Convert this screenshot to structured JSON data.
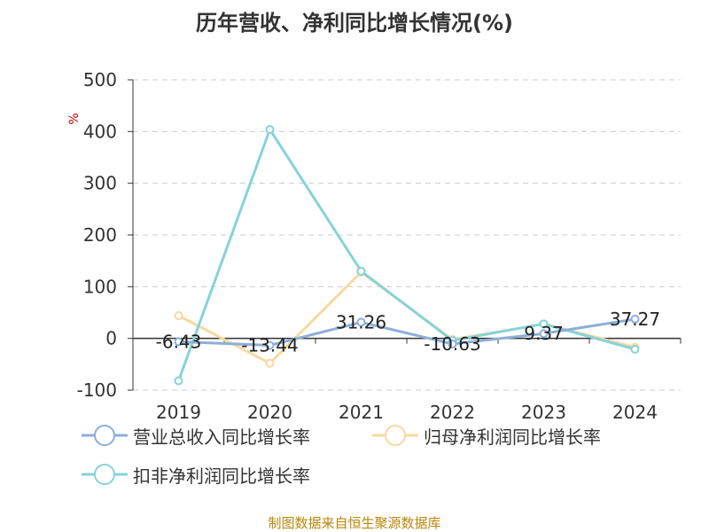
{
  "chart_data": {
    "type": "line",
    "title": "历年营收、净利同比增长情况(%)",
    "ylabel": "%",
    "categories": [
      "2019",
      "2020",
      "2021",
      "2022",
      "2023",
      "2024"
    ],
    "ylim": [
      -100,
      500
    ],
    "yticks": [
      -100,
      0,
      100,
      200,
      300,
      400,
      500
    ],
    "grid": true,
    "legend_position": "bottom",
    "series": [
      {
        "name": "营业总收入同比增长率",
        "color": "#8eaed8",
        "values": [
          -6.43,
          -13.44,
          31.26,
          -10.63,
          9.37,
          37.27
        ],
        "labels": [
          "-6.43",
          "-13.44",
          "31.26",
          "-10.63",
          "9.37",
          "37.27"
        ]
      },
      {
        "name": "归母净利润同比增长率",
        "color": "#f8d9a0",
        "values": [
          44,
          -48,
          128,
          -2,
          28,
          -17
        ]
      },
      {
        "name": "扣非净利润同比增长率",
        "color": "#86d3d9",
        "values": [
          -82,
          404,
          130,
          -4,
          28,
          -21
        ]
      }
    ],
    "footer": "制图数据来自恒生聚源数据库"
  }
}
